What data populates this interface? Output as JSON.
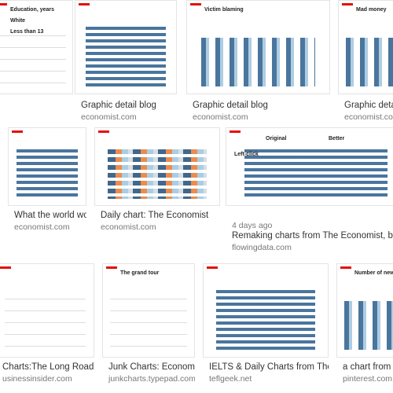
{
  "results": [
    {
      "thumb_text": [
        "Education, years",
        "White",
        "Less than 13"
      ]
    },
    {
      "caption": "Graphic detail blog",
      "source": "economist.com"
    },
    {
      "thumb_text": [
        "Victim blaming"
      ],
      "caption": "Graphic detail blog",
      "source": "economist.com"
    },
    {
      "thumb_text": [
        "Mad money"
      ],
      "caption": "Graphic detail b",
      "source": "economist.com"
    },
    {
      "caption": "What the world worries a...",
      "source": "economist.com"
    },
    {
      "caption": "Daily chart: The Economist",
      "source": "economist.com"
    },
    {
      "thumb_text": [
        "Original",
        "Better",
        "Left-click"
      ],
      "age": "4 days ago",
      "caption": "Remaking charts from The Economist, by ...",
      "source": "flowingdata.com"
    },
    {
      "caption": "Charts:The Long Road To Recov...",
      "source": "usinessinsider.com"
    },
    {
      "thumb_text": [
        "The grand tour"
      ],
      "caption": "Junk Charts: Economist",
      "source": "junkcharts.typepad.com"
    },
    {
      "caption": "IELTS & Daily Charts from The Econo...",
      "source": "teflgeek.net"
    },
    {
      "thumb_text": [
        "Number of newspaper article"
      ],
      "caption": "a chart from The E",
      "source": "pinterest.com"
    }
  ]
}
